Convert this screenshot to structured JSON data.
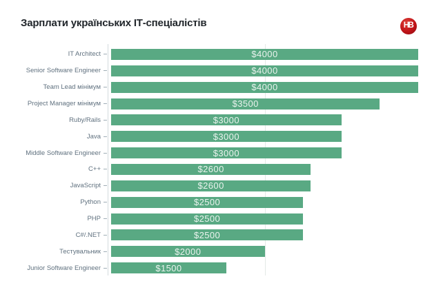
{
  "header": {
    "title_prefix": "Зарплати українських ",
    "title_bold": "ІТ",
    "title_suffix": "-спеціалістів",
    "logo_text": "НВ",
    "logo_color": "#c01318"
  },
  "chart_data": {
    "type": "bar",
    "orientation": "horizontal",
    "title": "Зарплати українських ІТ-спеціалістів",
    "unit": "USD per month",
    "categories": [
      "IT Architect",
      "Senior Software Engineer",
      "Team Lead мінімум",
      "Project Manager мінімум",
      "Ruby/Rails",
      "Java",
      "Middle Software Engineer",
      "C++",
      "JavaScript",
      "Python",
      "PHP",
      "C#/.NET",
      "Тестувальник",
      "Junior Software Engineer"
    ],
    "values": [
      4000,
      4000,
      4000,
      3500,
      3000,
      3000,
      3000,
      2600,
      2600,
      2500,
      2500,
      2500,
      2000,
      1500
    ],
    "value_labels": [
      "$4000",
      "$4000",
      "$4000",
      "$3500",
      "$3000",
      "$3000",
      "$3000",
      "$2600",
      "$2600",
      "$2500",
      "$2500",
      "$2500",
      "$2000",
      "$1500"
    ],
    "xlim": [
      0,
      4000
    ],
    "gridlines": [
      2000
    ],
    "grid": "faint vertical at 2000 only",
    "legend": "none",
    "colors": {
      "bar": "#59a983",
      "value_text": "#eaf3ee",
      "category_label": "#60717f",
      "axis_line": "#d3dadd",
      "tick": "#9fadb5",
      "gridline": "#e3e9e6"
    }
  }
}
